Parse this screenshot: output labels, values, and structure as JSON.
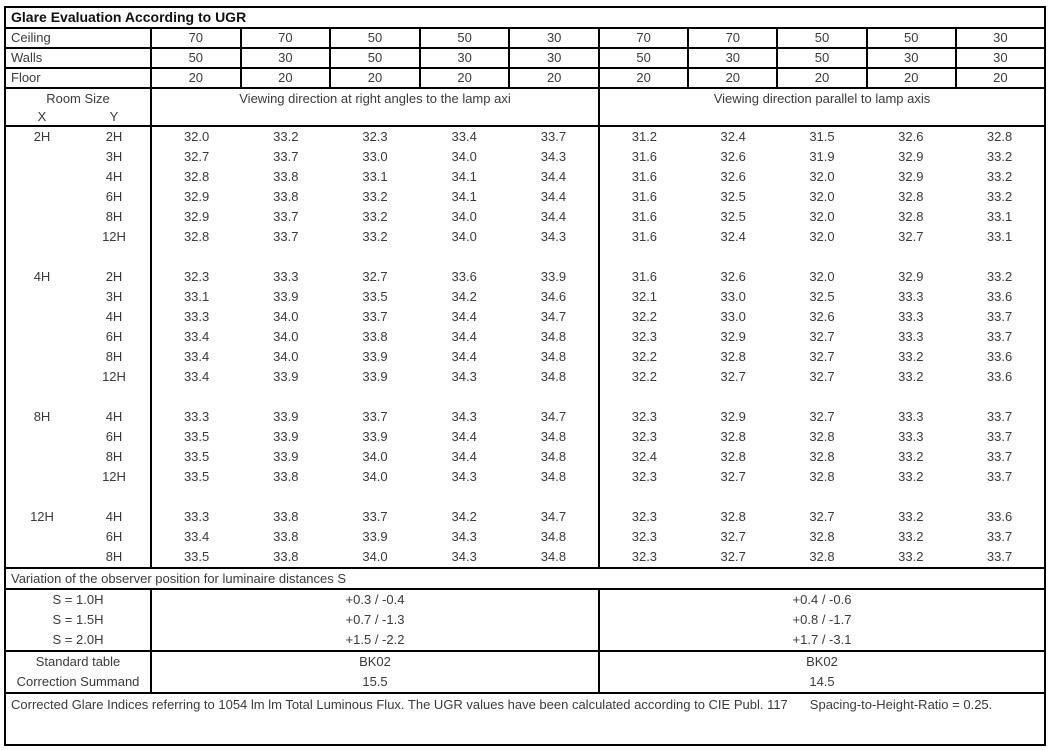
{
  "title": "Glare Evaluation According to UGR",
  "surface": {
    "rows": [
      {
        "label": "Ceiling",
        "values": [
          "70",
          "70",
          "50",
          "50",
          "30",
          "70",
          "70",
          "50",
          "50",
          "30"
        ]
      },
      {
        "label": "Walls",
        "values": [
          "50",
          "30",
          "50",
          "30",
          "30",
          "50",
          "30",
          "50",
          "30",
          "30"
        ]
      },
      {
        "label": "Floor",
        "values": [
          "20",
          "20",
          "20",
          "20",
          "20",
          "20",
          "20",
          "20",
          "20",
          "20"
        ]
      }
    ]
  },
  "header": {
    "room_size": "Room Size",
    "x": "X",
    "y": "Y",
    "group1": "Viewing direction at right angles to the lamp axi",
    "group2": "Viewing direction parallel to lamp axis"
  },
  "chart_data": {
    "type": "table",
    "title": "Glare Evaluation According to UGR",
    "groups": [
      {
        "x": "2H",
        "rows": [
          {
            "y": "2H",
            "values": [
              "32.0",
              "33.2",
              "32.3",
              "33.4",
              "33.7",
              "31.2",
              "32.4",
              "31.5",
              "32.6",
              "32.8"
            ]
          },
          {
            "y": "3H",
            "values": [
              "32.7",
              "33.7",
              "33.0",
              "34.0",
              "34.3",
              "31.6",
              "32.6",
              "31.9",
              "32.9",
              "33.2"
            ]
          },
          {
            "y": "4H",
            "values": [
              "32.8",
              "33.8",
              "33.1",
              "34.1",
              "34.4",
              "31.6",
              "32.6",
              "32.0",
              "32.9",
              "33.2"
            ]
          },
          {
            "y": "6H",
            "values": [
              "32.9",
              "33.8",
              "33.2",
              "34.1",
              "34.4",
              "31.6",
              "32.5",
              "32.0",
              "32.8",
              "33.2"
            ]
          },
          {
            "y": "8H",
            "values": [
              "32.9",
              "33.7",
              "33.2",
              "34.0",
              "34.4",
              "31.6",
              "32.5",
              "32.0",
              "32.8",
              "33.1"
            ]
          },
          {
            "y": "12H",
            "values": [
              "32.8",
              "33.7",
              "33.2",
              "34.0",
              "34.3",
              "31.6",
              "32.4",
              "32.0",
              "32.7",
              "33.1"
            ]
          }
        ]
      },
      {
        "x": "4H",
        "rows": [
          {
            "y": "2H",
            "values": [
              "32.3",
              "33.3",
              "32.7",
              "33.6",
              "33.9",
              "31.6",
              "32.6",
              "32.0",
              "32.9",
              "33.2"
            ]
          },
          {
            "y": "3H",
            "values": [
              "33.1",
              "33.9",
              "33.5",
              "34.2",
              "34.6",
              "32.1",
              "33.0",
              "32.5",
              "33.3",
              "33.6"
            ]
          },
          {
            "y": "4H",
            "values": [
              "33.3",
              "34.0",
              "33.7",
              "34.4",
              "34.7",
              "32.2",
              "33.0",
              "32.6",
              "33.3",
              "33.7"
            ]
          },
          {
            "y": "6H",
            "values": [
              "33.4",
              "34.0",
              "33.8",
              "34.4",
              "34.8",
              "32.3",
              "32.9",
              "32.7",
              "33.3",
              "33.7"
            ]
          },
          {
            "y": "8H",
            "values": [
              "33.4",
              "34.0",
              "33.9",
              "34.4",
              "34.8",
              "32.2",
              "32.8",
              "32.7",
              "33.2",
              "33.6"
            ]
          },
          {
            "y": "12H",
            "values": [
              "33.4",
              "33.9",
              "33.9",
              "34.3",
              "34.8",
              "32.2",
              "32.7",
              "32.7",
              "33.2",
              "33.6"
            ]
          }
        ]
      },
      {
        "x": "8H",
        "rows": [
          {
            "y": "4H",
            "values": [
              "33.3",
              "33.9",
              "33.7",
              "34.3",
              "34.7",
              "32.3",
              "32.9",
              "32.7",
              "33.3",
              "33.7"
            ]
          },
          {
            "y": "6H",
            "values": [
              "33.5",
              "33.9",
              "33.9",
              "34.4",
              "34.8",
              "32.3",
              "32.8",
              "32.8",
              "33.3",
              "33.7"
            ]
          },
          {
            "y": "8H",
            "values": [
              "33.5",
              "33.9",
              "34.0",
              "34.4",
              "34.8",
              "32.4",
              "32.8",
              "32.8",
              "33.2",
              "33.7"
            ]
          },
          {
            "y": "12H",
            "values": [
              "33.5",
              "33.8",
              "34.0",
              "34.3",
              "34.8",
              "32.3",
              "32.7",
              "32.8",
              "33.2",
              "33.7"
            ]
          }
        ]
      },
      {
        "x": "12H",
        "rows": [
          {
            "y": "4H",
            "values": [
              "33.3",
              "33.8",
              "33.7",
              "34.2",
              "34.7",
              "32.3",
              "32.8",
              "32.7",
              "33.2",
              "33.6"
            ]
          },
          {
            "y": "6H",
            "values": [
              "33.4",
              "33.8",
              "33.9",
              "34.3",
              "34.8",
              "32.3",
              "32.7",
              "32.8",
              "33.2",
              "33.7"
            ]
          },
          {
            "y": "8H",
            "values": [
              "33.5",
              "33.8",
              "34.0",
              "34.3",
              "34.8",
              "32.3",
              "32.7",
              "32.8",
              "33.2",
              "33.7"
            ]
          }
        ]
      }
    ]
  },
  "variation": {
    "title": "Variation of the observer position for luminaire distances S",
    "rows": [
      {
        "label": "S = 1.0H",
        "g1": "+0.3 / -0.4",
        "g2": "+0.4 / -0.6"
      },
      {
        "label": "S = 1.5H",
        "g1": "+0.7 / -1.3",
        "g2": "+0.8 / -1.7"
      },
      {
        "label": "S = 2.0H",
        "g1": "+1.5 / -2.2",
        "g2": "+1.7 / -3.1"
      }
    ]
  },
  "summary": {
    "rows": [
      {
        "label": "Standard table",
        "g1": "BK02",
        "g2": "BK02"
      },
      {
        "label": "Correction Summand",
        "g1": "15.5",
        "g2": "14.5"
      }
    ]
  },
  "footer": {
    "text1": "Corrected Glare Indices referring to 1054 lm lm Total Luminous Flux. The UGR values have been calculated according to CIE Publ. 117",
    "text2": "Spacing-to-Height-Ratio = 0.25."
  },
  "colors": {
    "border": "#000000",
    "text": "#3a3a3a",
    "title_text": "#111111",
    "background": "#ffffff"
  }
}
